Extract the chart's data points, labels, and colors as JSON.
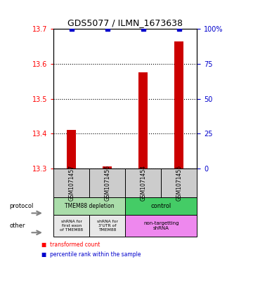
{
  "title": "GDS5077 / ILMN_1673638",
  "samples": [
    "GSM1071457",
    "GSM1071456",
    "GSM1071454",
    "GSM1071455"
  ],
  "red_values": [
    13.41,
    13.305,
    13.575,
    13.665
  ],
  "blue_values": [
    100,
    100,
    100,
    100
  ],
  "ylim_left": [
    13.3,
    13.7
  ],
  "ylim_right": [
    0,
    100
  ],
  "yticks_left": [
    13.3,
    13.4,
    13.5,
    13.6,
    13.7
  ],
  "yticks_right": [
    0,
    25,
    50,
    75,
    100
  ],
  "protocol_labels": [
    "TMEM88 depletion",
    "control"
  ],
  "other_label1": "shRNA for\nfirst exon\nof TMEM88",
  "other_label2": "shRNA for\n3'UTR of\nTMEM88",
  "other_label3": "non-targetting\nshRNA",
  "legend_red": "transformed count",
  "legend_blue": "percentile rank within the sample",
  "bar_color": "#cc0000",
  "blue_color": "#0000cc",
  "sample_box_color": "#cccccc",
  "protocol_depletion_color": "#aaddaa",
  "protocol_control_color": "#44cc66",
  "other_gray_color": "#e8e8e8",
  "other_pink_color": "#ee88ee"
}
